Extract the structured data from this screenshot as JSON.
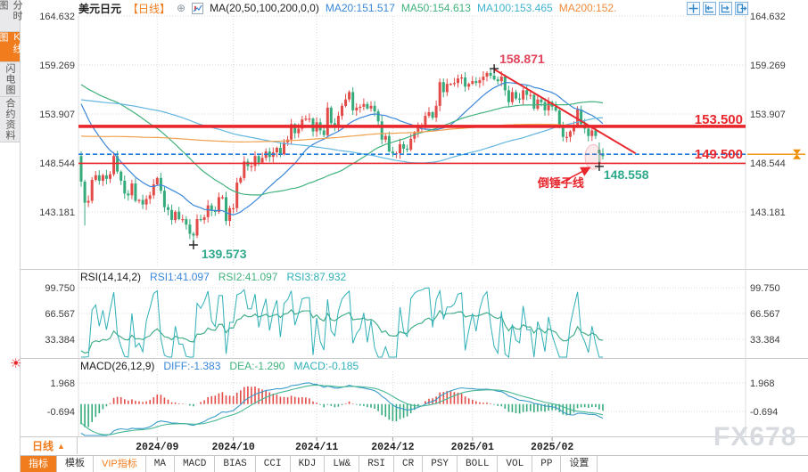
{
  "header": {
    "symbol": "美元日元",
    "period": "【日线】",
    "add_icon": "⊕",
    "ma_formula": "MA(20,50,100,200,0,0)",
    "ma20": "MA20:151.517",
    "ma50": "MA50:154.613",
    "ma100": "MA100:153.465",
    "ma200": "MA200:152."
  },
  "sidebar": {
    "tabs": [
      "分时图",
      "K线图",
      "闪电图",
      "合约资料"
    ],
    "active_index": 1,
    "sun_icon": "☀"
  },
  "rsi_header": {
    "title": "RSI(14,14,2)",
    "rsi1": "RSI1:41.097",
    "rsi2": "RSI2:41.097",
    "rsi3": "RSI3:87.932"
  },
  "macd_header": {
    "title": "MACD(26,12,9)",
    "diff": "DIFF:-1.383",
    "dea": "DEA:-1.290",
    "macd": "MACD:-0.185"
  },
  "bottom": {
    "period_label": "日线",
    "period_arrow": "▲",
    "tools": [
      "指标",
      "模板",
      "VIP指标",
      "MA",
      "MACD",
      "BIAS",
      "CCI",
      "KDJ",
      "LW&",
      "RSI",
      "CR",
      "PSY",
      "BOLL",
      "VOL",
      "PP",
      "设置"
    ]
  },
  "watermark": "FX678",
  "colors": {
    "up": "#e24b48",
    "down": "#35ab7c",
    "ma20": "#3a87d8",
    "ma50": "#41b27d",
    "ma100": "#63b6e0",
    "ma200": "#f0a04b",
    "grid": "#d8d8d8",
    "border": "#c9c9c9",
    "axis_text": "#3c3c3c",
    "red": "#e8262c",
    "pink_red": "#e0445a",
    "teal_label": "#2fa98c",
    "dash_blue": "#1f7bd9",
    "orange": "#f08c00",
    "rsi1": "#3a87d8",
    "rsi2": "#41b27d",
    "rsi3": "#2fb0b8",
    "diff": "#3a9bc9",
    "dea": "#45b793",
    "hist_up": "#e24b48",
    "hist_down": "#35ab7c"
  },
  "chart_data": {
    "type": "candlestick",
    "symbol": "美元日元",
    "period": "日线",
    "y_axis": [
      164.632,
      159.269,
      153.907,
      148.544,
      143.181
    ],
    "rsi_axis": [
      99.75,
      66.567,
      33.384
    ],
    "macd_axis": [
      1.968,
      -0.694
    ],
    "x_labels": [
      "2024/09",
      "2024/10",
      "2024/11",
      "2024/12",
      "2025/01",
      "2025/02"
    ],
    "month_start_indices": [
      21,
      42,
      65,
      86,
      108,
      130
    ],
    "closes": [
      146.5,
      144.2,
      144.4,
      146.7,
      147.2,
      146.6,
      147.2,
      146.8,
      147.3,
      149.3,
      147.6,
      146.6,
      145.2,
      145.0,
      146.3,
      144.4,
      144.5,
      144.0,
      144.6,
      145.0,
      146.2,
      146.9,
      145.5,
      143.7,
      143.4,
      142.3,
      143.2,
      142.4,
      142.4,
      141.8,
      140.8,
      140.6,
      142.4,
      142.3,
      142.6,
      143.9,
      143.3,
      143.2,
      144.8,
      144.8,
      142.2,
      143.6,
      143.6,
      146.4,
      146.9,
      148.7,
      148.2,
      148.2,
      149.3,
      148.6,
      149.1,
      149.8,
      149.2,
      149.7,
      150.2,
      149.5,
      150.8,
      151.1,
      152.8,
      151.8,
      152.3,
      153.3,
      153.4,
      153.4,
      152.0,
      153.0,
      152.1,
      151.6,
      154.6,
      152.9,
      152.6,
      153.7,
      154.8,
      155.5,
      156.3,
      154.3,
      154.6,
      154.7,
      155.0,
      154.5,
      154.8,
      154.2,
      153.1,
      151.1,
      151.5,
      149.8,
      149.6,
      149.6,
      150.6,
      150.1,
      150.0,
      151.2,
      151.9,
      152.4,
      152.6,
      153.7,
      154.1,
      153.5,
      154.8,
      157.4,
      156.3,
      157.2,
      157.2,
      157.3,
      157.8,
      157.9,
      156.9,
      157.2,
      157.5,
      157.3,
      157.6,
      158.0,
      158.4,
      158.1,
      157.7,
      157.5,
      158.0,
      156.5,
      155.2,
      156.3,
      155.6,
      155.5,
      156.5,
      156.0,
      156.0,
      154.5,
      155.5,
      155.2,
      154.3,
      155.2,
      154.7,
      154.3,
      152.6,
      151.4,
      151.4,
      152.0,
      152.5,
      154.4,
      152.8,
      152.3,
      151.5,
      152.1,
      151.5,
      149.6,
      149.3
    ],
    "prehistory": [
      147.0,
      147.7,
      147.7,
      148.3,
      149.0,
      149.2,
      150.9,
      151.6,
      151.4,
      151.4,
      151.3,
      151.4,
      151.3,
      151.4,
      151.3,
      151.7,
      151.6,
      151.9,
      151.8,
      152.3,
      151.8,
      151.9,
      152.9,
      153.2,
      153.3,
      154.3,
      154.6,
      154.2,
      154.8,
      154.6,
      155.3,
      155.7,
      155.6,
      155.5,
      156.8,
      157.8,
      156.3,
      153.1,
      153.6,
      153.0,
      155.9,
      154.7,
      155.3,
      155.5,
      155.8,
      156.2,
      156.5,
      155.4,
      154.8,
      156.0,
      156.6,
      155.9,
      157.0,
      156.9,
      157.1,
      157.0,
      156.8,
      157.3,
      157.3,
      156.3,
      155.1,
      156.1,
      155.7,
      156.7,
      157.0,
      157.3,
      158.1,
      157.9,
      157.7,
      157.8,
      158.3,
      158.9,
      159.1,
      159.7,
      159.8,
      160.3,
      160.8,
      160.9,
      160.9,
      161.5,
      161.7,
      161.3,
      160.8,
      160.7,
      161.0,
      161.3,
      161.7,
      158.8,
      157.9,
      158.1,
      157.2,
      156.3,
      155.6,
      157.4,
      155.7,
      153.9,
      153.7,
      154.0,
      152.8,
      150.0,
      150.1,
      149.0,
      149.3
    ],
    "ma200_backfill": 147.5,
    "ma_periods": [
      20,
      50,
      100,
      200
    ],
    "overrides": {
      "1": {
        "l": 141.7
      },
      "31": {
        "l": 139.573
      },
      "114": {
        "h": 158.871
      },
      "143": {
        "o": 150.0,
        "c": 149.6,
        "h": 150.8,
        "l": 148.558
      }
    },
    "annotations": {
      "high_label": "158.871",
      "high_index": 114,
      "high_price": 158.871,
      "low_label": "139.573",
      "low_index": 31,
      "low_price": 139.573,
      "hammer_label": "148.558",
      "hammer_index": 143,
      "hammer_price": 148.558,
      "resistance_label": "153.500",
      "resistance_line_price": 152.55,
      "resistance_label_price": 153.32,
      "current_label": "149.500",
      "current_price": 149.5,
      "support_price": 148.5,
      "pattern_label": "倒锤子线",
      "pattern_text_index": 126,
      "pattern_text_price": 145.9,
      "trend": [
        114,
        158.8,
        153,
        149.6
      ],
      "arrow": [
        132.5,
        146.4,
        140.2,
        148.0
      ],
      "ellipse": {
        "index": 141.3,
        "price": 149.2,
        "rx": 9,
        "ry": 14
      }
    }
  }
}
